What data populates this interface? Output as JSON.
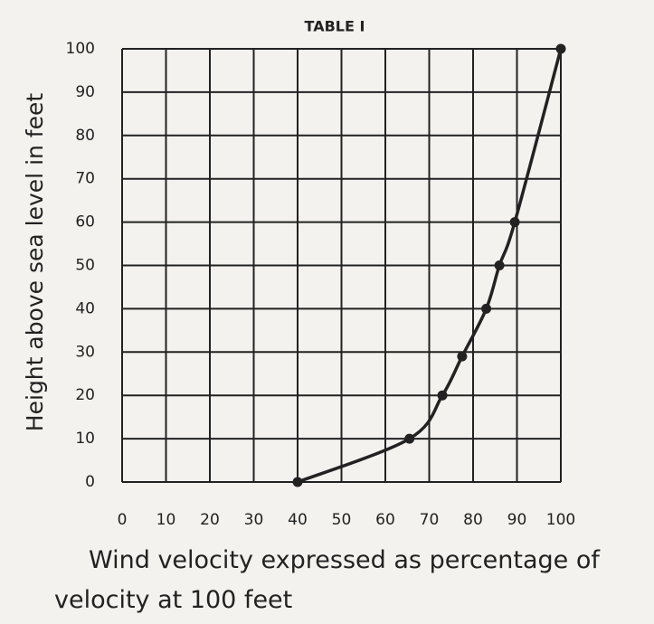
{
  "chart_data": {
    "type": "line",
    "title": "TABLE I",
    "xlabel": "Wind velocity expressed as percentage of velocity at 100 feet",
    "ylabel": "Height above sea level in feet",
    "x": [
      40,
      65.5,
      73,
      77.5,
      83,
      86,
      89.5,
      100
    ],
    "series": [
      {
        "color": "#222222",
        "values": [
          0,
          10,
          20,
          29,
          40,
          50,
          60,
          100
        ]
      }
    ],
    "xlim": [
      0,
      100
    ],
    "xticks": [
      0,
      10,
      20,
      30,
      40,
      50,
      60,
      70,
      80,
      90,
      100
    ],
    "ylim": [
      0,
      100
    ],
    "yticks": [
      0,
      10,
      20,
      30,
      40,
      50,
      60,
      70,
      80,
      90,
      100
    ],
    "grid": true
  }
}
